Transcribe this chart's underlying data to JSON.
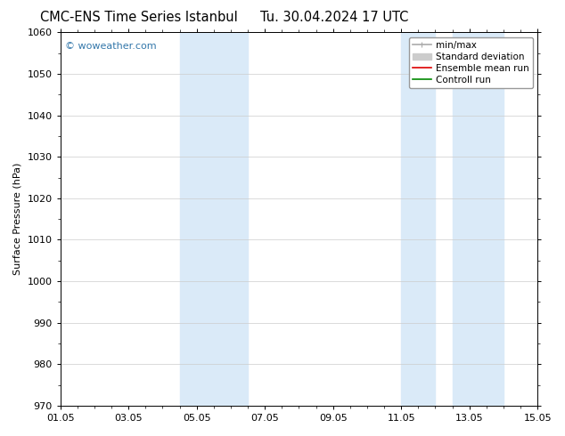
{
  "title_left": "CMC-ENS Time Series Istanbul",
  "title_right": "Tu. 30.04.2024 17 UTC",
  "ylabel": "Surface Pressure (hPa)",
  "ylim": [
    970,
    1060
  ],
  "yticks": [
    970,
    980,
    990,
    1000,
    1010,
    1020,
    1030,
    1040,
    1050,
    1060
  ],
  "xlim": [
    0,
    14
  ],
  "xtick_positions": [
    0,
    2,
    4,
    6,
    8,
    10,
    12,
    14
  ],
  "xtick_labels": [
    "01.05",
    "03.05",
    "05.05",
    "07.05",
    "09.05",
    "11.05",
    "13.05",
    "15.05"
  ],
  "watermark": "© woweather.com",
  "watermark_color": "#3377aa",
  "shaded_bands": [
    {
      "xmin": 3.5,
      "xmax": 5.5,
      "color": "#daeaf8"
    },
    {
      "xmin": 10.0,
      "xmax": 11.0,
      "color": "#daeaf8"
    },
    {
      "xmin": 11.5,
      "xmax": 13.0,
      "color": "#daeaf8"
    }
  ],
  "legend_items": [
    {
      "label": "min/max",
      "color": "#aaaaaa",
      "lw": 1.2
    },
    {
      "label": "Standard deviation",
      "color": "#cccccc",
      "lw": 7
    },
    {
      "label": "Ensemble mean run",
      "color": "#dd0000",
      "lw": 1.2
    },
    {
      "label": "Controll run",
      "color": "#008800",
      "lw": 1.2
    }
  ],
  "background_color": "#ffffff",
  "plot_bg_color": "#ffffff",
  "grid_color": "#cccccc",
  "spine_color": "#000000",
  "title_fontsize": 10.5,
  "label_fontsize": 8,
  "tick_fontsize": 8,
  "legend_fontsize": 7.5
}
